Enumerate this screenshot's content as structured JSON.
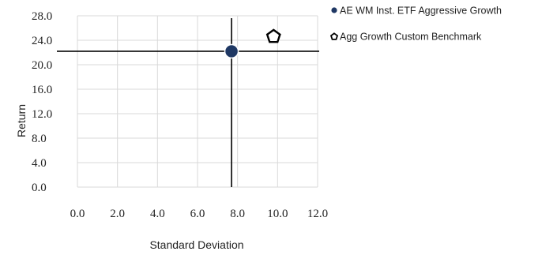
{
  "chart_data": {
    "type": "scatter",
    "title": "",
    "xlabel": "Standard Deviation",
    "ylabel": "Return",
    "xlim": [
      0,
      12
    ],
    "ylim": [
      0,
      28
    ],
    "x_ticks": [
      "0.0",
      "2.0",
      "4.0",
      "6.0",
      "8.0",
      "10.0",
      "12.0"
    ],
    "y_ticks": [
      "0.0",
      "4.0",
      "8.0",
      "12.0",
      "16.0",
      "20.0",
      "24.0",
      "28.0"
    ],
    "grid": true,
    "legend_position": "top-right",
    "crosshair": {
      "x": 7.7,
      "y": 22.2
    },
    "series": [
      {
        "name": "AE WM Inst. ETF Aggressive Growth",
        "marker": "circle",
        "color": "#1f3864",
        "x": [
          7.7
        ],
        "y": [
          22.2
        ]
      },
      {
        "name": "Agg Growth Custom Benchmark",
        "marker": "pentagon",
        "color": "#000000",
        "x": [
          9.8
        ],
        "y": [
          24.6
        ]
      }
    ]
  }
}
